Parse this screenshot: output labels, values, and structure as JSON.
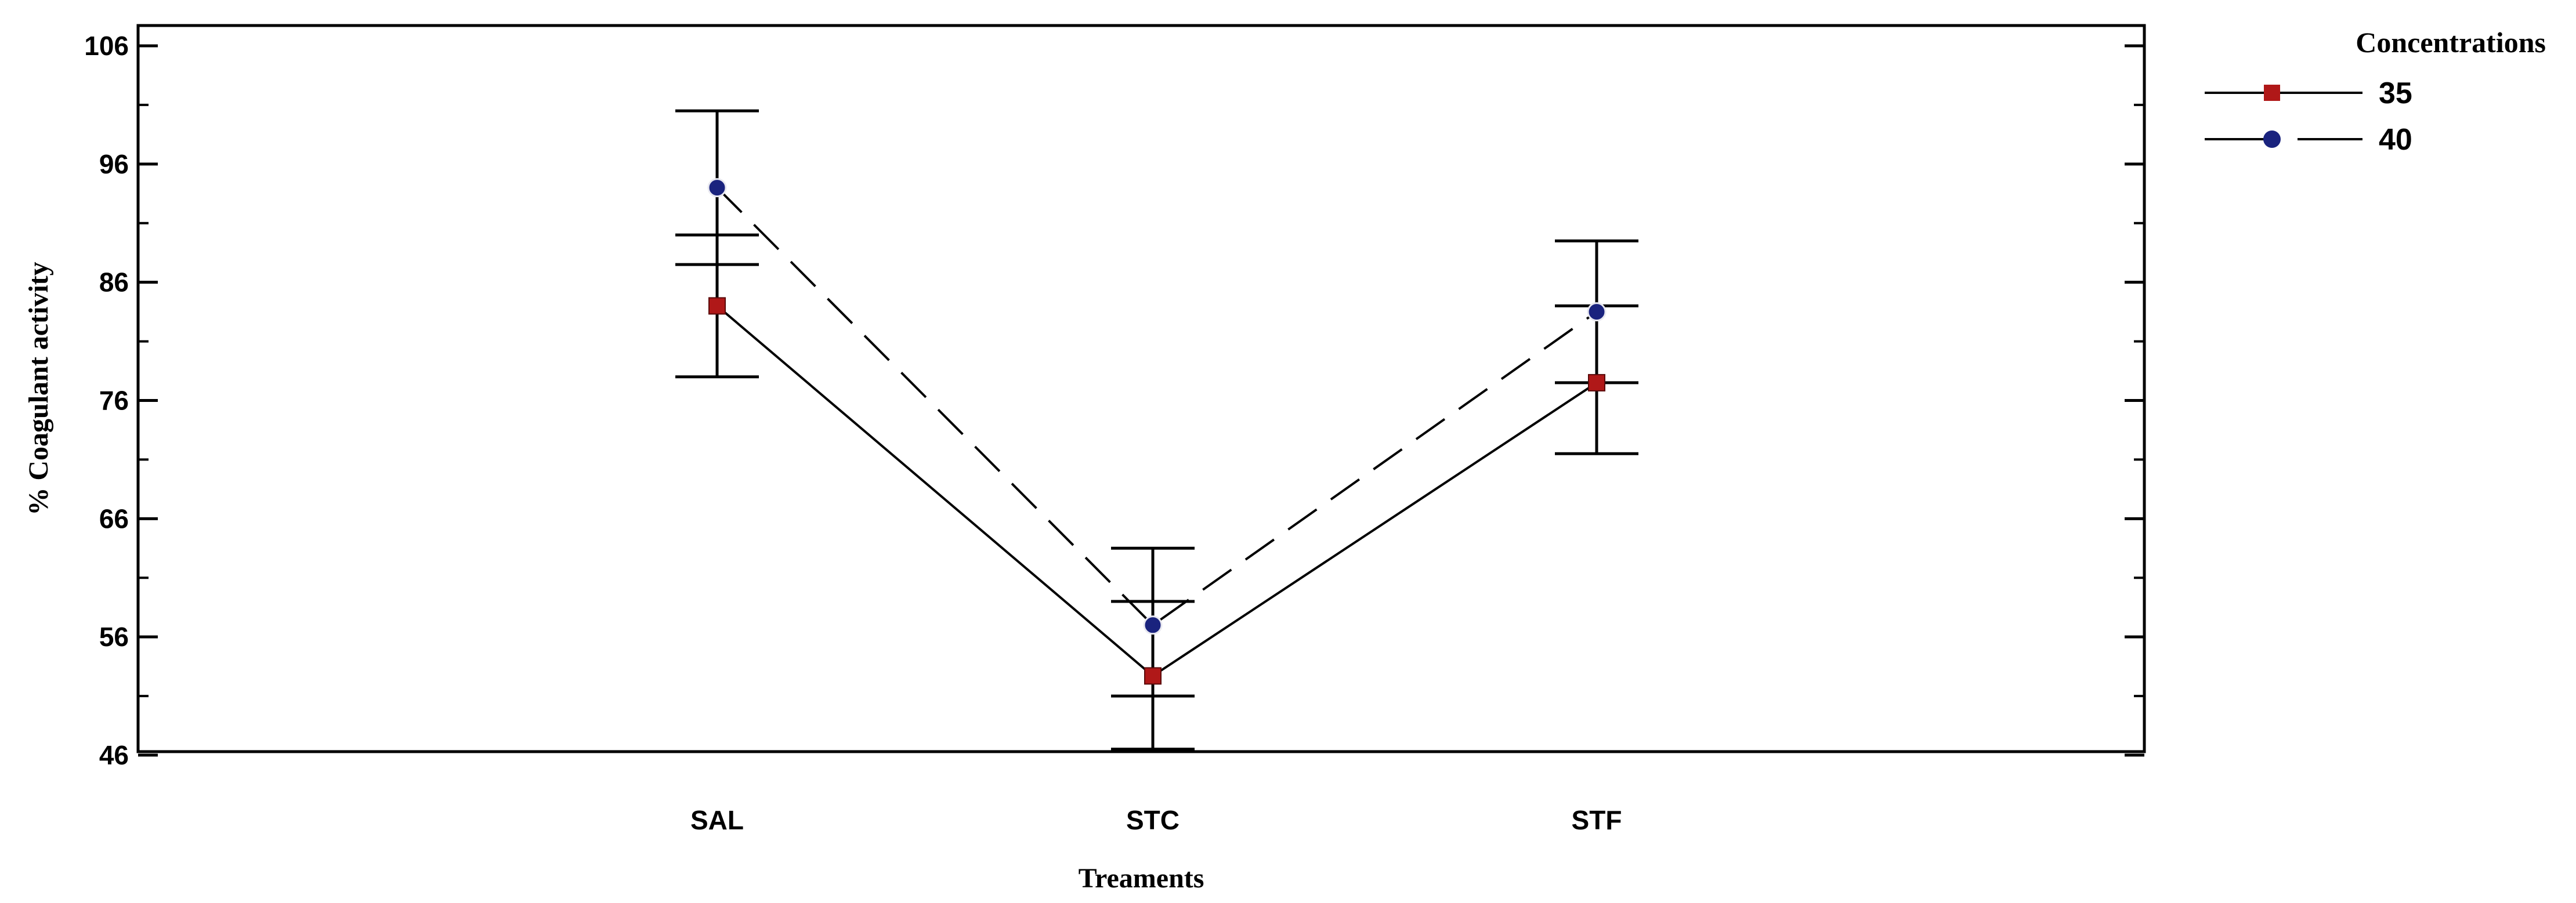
{
  "chart_data": {
    "type": "line",
    "xlabel": "Treaments",
    "ylabel": "% Coagulant activity",
    "categories": [
      "SAL",
      "STC",
      "STF"
    ],
    "ylim": [
      46,
      106
    ],
    "yticks": [
      "106",
      "96",
      "86",
      "76",
      "66",
      "56",
      "46"
    ],
    "grid": false,
    "legend": {
      "title": "Concentrations",
      "placement": "top-right, outside plot"
    },
    "series": [
      {
        "name": "35",
        "line_style": "solid",
        "marker": "square",
        "color": "#b01818",
        "values": [
          84,
          52.7,
          77.5
        ],
        "error_low": [
          78,
          46.5,
          71.5
        ],
        "error_high": [
          90,
          59,
          84
        ]
      },
      {
        "name": "40",
        "line_style": "dashed",
        "marker": "circle",
        "color": "#1a237e",
        "values": [
          94,
          57,
          83.5
        ],
        "error_low": [
          87.5,
          51,
          77.5
        ],
        "error_high": [
          100.5,
          63.5,
          89.5
        ]
      }
    ]
  }
}
